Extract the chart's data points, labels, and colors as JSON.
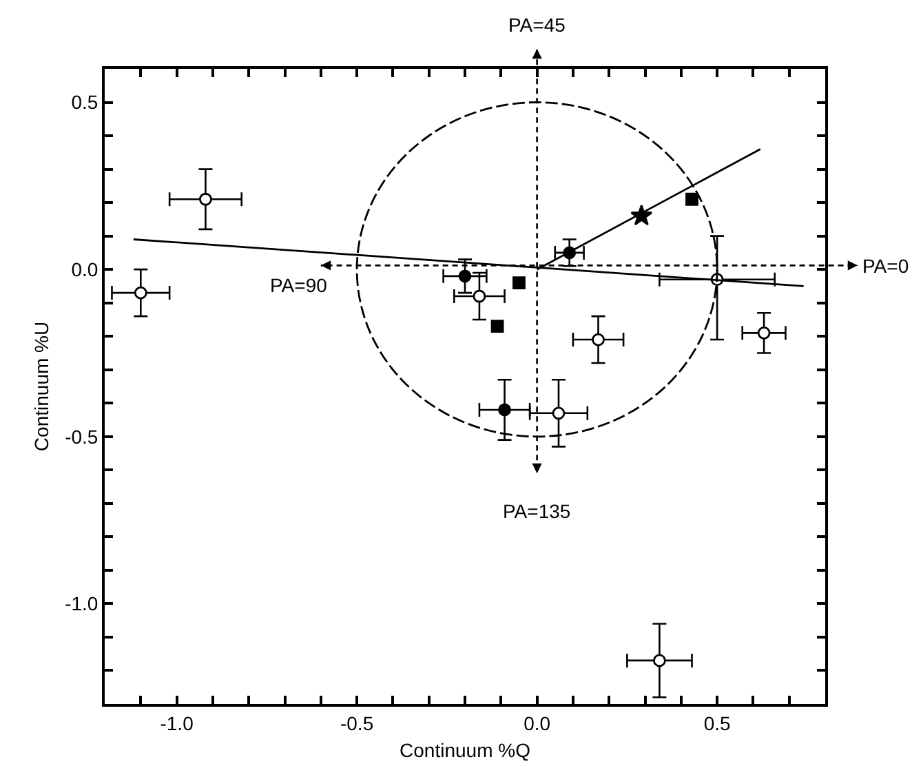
{
  "chart_data": {
    "type": "scatter",
    "xlabel": "Continuum %Q",
    "ylabel": "Continuum %U",
    "xlim": [
      -1.2,
      0.8
    ],
    "ylim": [
      -1.3,
      0.6
    ],
    "xticks": [
      {
        "value": -1.2,
        "label": null
      },
      {
        "value": -1.1,
        "label": null
      },
      "-1.0",
      {
        "value": -0.9,
        "label": null
      },
      {
        "value": -0.8,
        "label": null
      },
      {
        "value": -0.7,
        "label": null
      },
      {
        "value": -0.6,
        "label": null
      },
      {
        "value": -0.5,
        "label": "-0.5"
      },
      {
        "value": -0.4,
        "label": null
      },
      {
        "value": -0.3,
        "label": null
      },
      {
        "value": -0.2,
        "label": null
      },
      {
        "value": -0.1,
        "label": null
      },
      {
        "value": 0,
        "label": "0.0"
      },
      {
        "value": 0.1,
        "label": null
      },
      {
        "value": 0.2,
        "label": null
      },
      {
        "value": 0.3,
        "label": null
      },
      {
        "value": 0.4,
        "label": null
      },
      {
        "value": 0.5,
        "label": "0.5"
      },
      {
        "value": 0.6,
        "label": null
      },
      {
        "value": 0.7,
        "label": null
      }
    ],
    "yticks": [
      {
        "value": -1.2,
        "label": null
      },
      {
        "value": -1.1,
        "label": null
      },
      {
        "value": -1.0,
        "label": "-1.0"
      },
      {
        "value": -0.9,
        "label": null
      },
      {
        "value": -0.8,
        "label": null
      },
      {
        "value": -0.7,
        "label": null
      },
      {
        "value": -0.6,
        "label": null
      },
      {
        "value": -0.5,
        "label": "-0.5"
      },
      {
        "value": -0.4,
        "label": null
      },
      {
        "value": -0.3,
        "label": null
      },
      {
        "value": -0.2,
        "label": null
      },
      {
        "value": -0.1,
        "label": null
      },
      {
        "value": 0,
        "label": "0.0"
      },
      {
        "value": 0.1,
        "label": null
      },
      {
        "value": 0.2,
        "label": null
      },
      {
        "value": 0.3,
        "label": null
      },
      {
        "value": 0.4,
        "label": null
      },
      {
        "value": 0.5,
        "label": "0.5"
      }
    ],
    "grid": false,
    "series": [
      {
        "type": "scatter",
        "marker": "circle",
        "color": "#ffffff",
        "x": [
          -0.92,
          -1.1,
          -0.16,
          0.5,
          0.63,
          0.17,
          0.06,
          0.34
        ],
        "values": [
          0.21,
          -0.07,
          -0.08,
          -0.03,
          -0.19,
          -0.21,
          -0.43,
          -1.17
        ],
        "xerrors": [
          0.1,
          0.08,
          0.07,
          0.16,
          0.06,
          0.07,
          0.08,
          0.09
        ],
        "errors": [
          0.09,
          0.07,
          0.07,
          [
            -0.21,
            0.1
          ],
          0.06,
          0.07,
          0.1,
          0.11
        ]
      },
      {
        "type": "scatter",
        "marker": "circle",
        "color": "#000000",
        "x": [
          -0.2,
          0.09,
          -0.09
        ],
        "values": [
          -0.02,
          0.05,
          -0.42
        ],
        "xerrors": [
          0.06,
          0.04,
          0.07
        ],
        "errors": [
          0.05,
          0.04,
          0.09
        ]
      },
      {
        "type": "scatter",
        "marker": "square",
        "color": "#000000",
        "x": [
          -0.11,
          -0.05,
          0.43
        ],
        "values": [
          -0.17,
          -0.04,
          0.21
        ]
      },
      {
        "type": "scatter",
        "marker": "star",
        "color": "#000000",
        "x": [
          0.29
        ],
        "values": [
          0.16
        ]
      },
      {
        "type": "line",
        "line_style": "solid",
        "color": "#000000",
        "x": [
          -1.12,
          0.74
        ],
        "values": [
          0.09,
          -0.05
        ]
      },
      {
        "type": "line",
        "line_style": "solid",
        "color": "#000000",
        "x": [
          0.0,
          0.62
        ],
        "values": [
          0.0,
          0.36
        ]
      }
    ],
    "annotations": [
      "PA=45",
      "PA=135",
      "PA=90",
      "PA=0"
    ]
  }
}
